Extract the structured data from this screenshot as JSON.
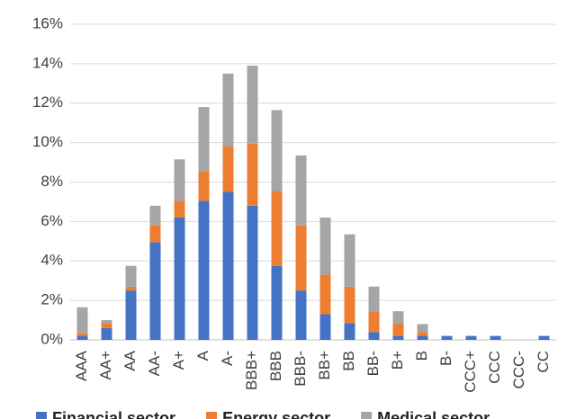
{
  "chart_data": {
    "type": "stacked-bar",
    "categories": [
      "AAA",
      "AA+",
      "AA",
      "AA-",
      "A+",
      "A",
      "A-",
      "BBB+",
      "BBB",
      "BBB-",
      "BB+",
      "BB",
      "BB-",
      "B+",
      "B",
      "B-",
      "CCC+",
      "CCC",
      "CCC-",
      "CC"
    ],
    "series": [
      {
        "name": "Financial sector",
        "color": "#4472c4",
        "values": [
          0.2,
          0.6,
          2.5,
          4.95,
          6.2,
          7.05,
          7.5,
          6.8,
          3.75,
          2.5,
          1.3,
          0.85,
          0.4,
          0.2,
          0.2,
          0.2,
          0.2,
          0.2,
          0,
          0.2
        ]
      },
      {
        "name": "Energy sector",
        "color": "#ed7d31",
        "values": [
          0.15,
          0.25,
          0.2,
          0.85,
          0.85,
          1.5,
          2.3,
          3.15,
          3.8,
          3.3,
          2.0,
          1.85,
          1.05,
          0.65,
          0.2,
          0,
          0,
          0,
          0,
          0
        ]
      },
      {
        "name": "Medical sector",
        "color": "#a5a5a5",
        "values": [
          1.3,
          0.15,
          1.05,
          1.0,
          2.1,
          3.25,
          3.7,
          3.95,
          4.1,
          3.55,
          2.9,
          2.65,
          1.25,
          0.6,
          0.4,
          0,
          0,
          0,
          0,
          0
        ]
      }
    ],
    "ylim": [
      0,
      16
    ],
    "yticks": [
      {
        "value": 0,
        "label": "0%"
      },
      {
        "value": 2,
        "label": "2%"
      },
      {
        "value": 4,
        "label": "4%"
      },
      {
        "value": 6,
        "label": "6%"
      },
      {
        "value": 8,
        "label": "8%"
      },
      {
        "value": 10,
        "label": "10%"
      },
      {
        "value": 12,
        "label": "12%"
      },
      {
        "value": 14,
        "label": "14%"
      },
      {
        "value": 16,
        "label": "16%"
      }
    ],
    "grid": true
  }
}
